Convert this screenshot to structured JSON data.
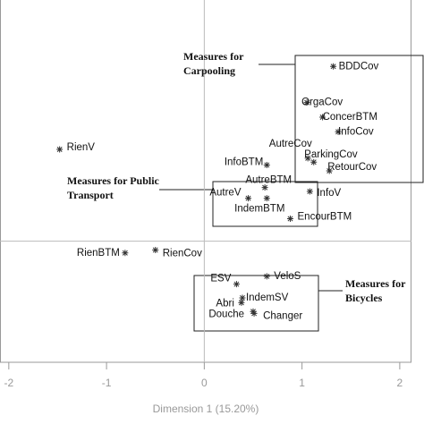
{
  "chart_data": {
    "type": "scatter",
    "x_label": "Dimension 1 (15.20%)",
    "xlim": [
      -2.09,
      2.12
    ],
    "ylim": [
      -1.24,
      2.47
    ],
    "xticks": [
      -2,
      -1,
      0,
      1,
      2
    ],
    "color": "#333333",
    "labels": [
      "BDDCov",
      "OrgaCov",
      "ConcerBTM",
      "InfoCov",
      "AutreCov",
      "ParkingCov",
      "RetourCov",
      "InfoBTM",
      "AutreBTM",
      "AutreV",
      "IndemBTM",
      "InfoV",
      "EncourBTM",
      "RienV",
      "RienBTM",
      "RienCov",
      "ESV",
      "VeloS",
      "IndemSV",
      "Abri",
      "Douche",
      "Changer"
    ],
    "x": [
      1.32,
      1.05,
      1.21,
      1.37,
      1.12,
      1.06,
      1.28,
      0.64,
      0.62,
      0.45,
      0.64,
      1.08,
      0.88,
      -1.48,
      -0.81,
      -0.5,
      0.33,
      0.64,
      0.39,
      0.38,
      0.5,
      0.51
    ],
    "y": [
      1.79,
      1.42,
      1.27,
      1.12,
      0.81,
      0.85,
      0.72,
      0.78,
      0.55,
      0.44,
      0.44,
      0.51,
      0.23,
      0.94,
      -0.12,
      -0.09,
      -0.44,
      -0.36,
      -0.58,
      -0.63,
      -0.72,
      -0.74
    ],
    "annotations": [
      {
        "lines": [
          "Measures for",
          "Carpooling"
        ]
      },
      {
        "lines": [
          "Measures for Public",
          "Transport"
        ]
      },
      {
        "lines": [
          "Measures for",
          "Bicycles"
        ]
      }
    ]
  }
}
